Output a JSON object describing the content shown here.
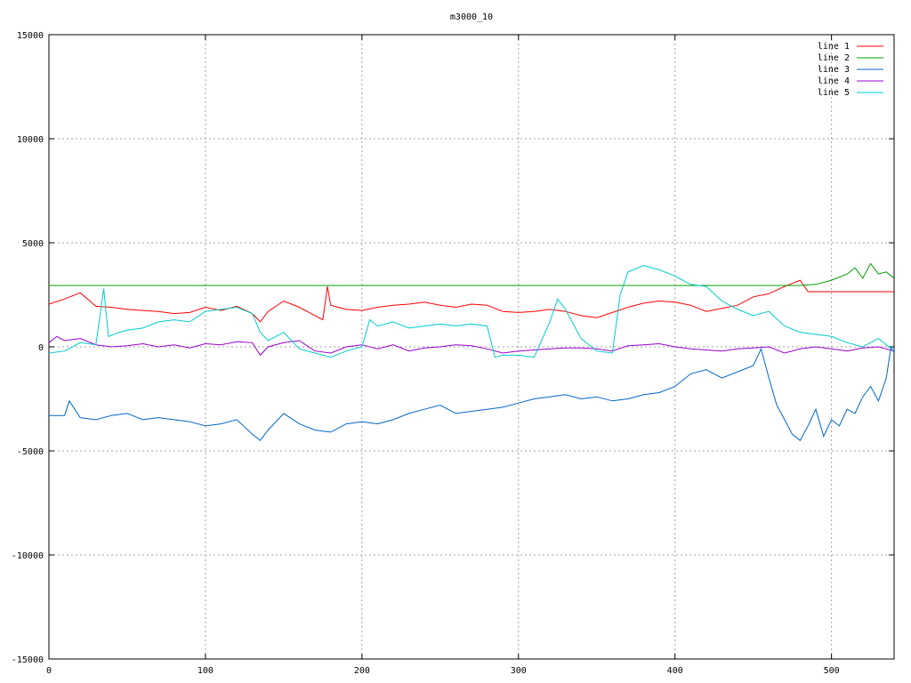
{
  "chart_data": {
    "type": "line",
    "title": "m3000_10",
    "xlabel": "",
    "ylabel": "",
    "xlim": [
      0,
      540
    ],
    "ylim": [
      -15000,
      15000
    ],
    "xticks": [
      0,
      100,
      200,
      300,
      400,
      500
    ],
    "yticks": [
      -15000,
      -10000,
      -5000,
      0,
      5000,
      10000,
      15000
    ],
    "grid": true,
    "legend": "top-right",
    "series": [
      {
        "name": "line 1",
        "color": "#ff0000",
        "points": [
          [
            0,
            2050
          ],
          [
            10,
            2300
          ],
          [
            20,
            2600
          ],
          [
            30,
            1950
          ],
          [
            40,
            1900
          ],
          [
            50,
            1800
          ],
          [
            60,
            1750
          ],
          [
            70,
            1700
          ],
          [
            80,
            1600
          ],
          [
            90,
            1650
          ],
          [
            100,
            1900
          ],
          [
            110,
            1750
          ],
          [
            120,
            1950
          ],
          [
            130,
            1600
          ],
          [
            135,
            1200
          ],
          [
            140,
            1700
          ],
          [
            150,
            2200
          ],
          [
            160,
            1900
          ],
          [
            170,
            1500
          ],
          [
            175,
            1300
          ],
          [
            178,
            2900
          ],
          [
            180,
            2000
          ],
          [
            190,
            1800
          ],
          [
            200,
            1750
          ],
          [
            210,
            1900
          ],
          [
            220,
            2000
          ],
          [
            230,
            2050
          ],
          [
            240,
            2150
          ],
          [
            250,
            2000
          ],
          [
            260,
            1900
          ],
          [
            270,
            2050
          ],
          [
            280,
            2000
          ],
          [
            290,
            1700
          ],
          [
            300,
            1650
          ],
          [
            310,
            1700
          ],
          [
            320,
            1800
          ],
          [
            330,
            1700
          ],
          [
            340,
            1500
          ],
          [
            350,
            1400
          ],
          [
            360,
            1650
          ],
          [
            370,
            1900
          ],
          [
            380,
            2100
          ],
          [
            390,
            2200
          ],
          [
            400,
            2150
          ],
          [
            410,
            2000
          ],
          [
            420,
            1700
          ],
          [
            430,
            1850
          ],
          [
            440,
            2000
          ],
          [
            450,
            2400
          ],
          [
            460,
            2550
          ],
          [
            470,
            2900
          ],
          [
            480,
            3200
          ],
          [
            485,
            2650
          ],
          [
            540,
            2650
          ]
        ]
      },
      {
        "name": "line 2",
        "color": "#00a000",
        "points": [
          [
            0,
            2950
          ],
          [
            480,
            2950
          ],
          [
            490,
            3000
          ],
          [
            500,
            3200
          ],
          [
            510,
            3500
          ],
          [
            515,
            3800
          ],
          [
            520,
            3300
          ],
          [
            525,
            4000
          ],
          [
            530,
            3500
          ],
          [
            535,
            3600
          ],
          [
            540,
            3300
          ]
        ]
      },
      {
        "name": "line 3",
        "color": "#0066cc",
        "points": [
          [
            0,
            -3300
          ],
          [
            10,
            -3300
          ],
          [
            13,
            -2600
          ],
          [
            20,
            -3400
          ],
          [
            30,
            -3500
          ],
          [
            40,
            -3300
          ],
          [
            50,
            -3200
          ],
          [
            60,
            -3500
          ],
          [
            70,
            -3400
          ],
          [
            80,
            -3500
          ],
          [
            90,
            -3600
          ],
          [
            100,
            -3800
          ],
          [
            110,
            -3700
          ],
          [
            120,
            -3500
          ],
          [
            130,
            -4200
          ],
          [
            135,
            -4500
          ],
          [
            140,
            -4000
          ],
          [
            150,
            -3200
          ],
          [
            160,
            -3700
          ],
          [
            170,
            -4000
          ],
          [
            180,
            -4100
          ],
          [
            190,
            -3700
          ],
          [
            200,
            -3600
          ],
          [
            210,
            -3700
          ],
          [
            220,
            -3500
          ],
          [
            230,
            -3200
          ],
          [
            240,
            -3000
          ],
          [
            250,
            -2800
          ],
          [
            260,
            -3200
          ],
          [
            270,
            -3100
          ],
          [
            280,
            -3000
          ],
          [
            290,
            -2900
          ],
          [
            300,
            -2700
          ],
          [
            310,
            -2500
          ],
          [
            320,
            -2400
          ],
          [
            330,
            -2300
          ],
          [
            340,
            -2500
          ],
          [
            350,
            -2400
          ],
          [
            360,
            -2600
          ],
          [
            370,
            -2500
          ],
          [
            380,
            -2300
          ],
          [
            390,
            -2200
          ],
          [
            400,
            -1900
          ],
          [
            410,
            -1300
          ],
          [
            420,
            -1100
          ],
          [
            430,
            -1500
          ],
          [
            440,
            -1200
          ],
          [
            450,
            -900
          ],
          [
            455,
            -100
          ],
          [
            460,
            -1500
          ],
          [
            465,
            -2800
          ],
          [
            470,
            -3500
          ],
          [
            475,
            -4200
          ],
          [
            480,
            -4500
          ],
          [
            485,
            -3800
          ],
          [
            490,
            -3000
          ],
          [
            495,
            -4300
          ],
          [
            500,
            -3500
          ],
          [
            505,
            -3800
          ],
          [
            510,
            -3000
          ],
          [
            515,
            -3200
          ],
          [
            520,
            -2400
          ],
          [
            525,
            -1900
          ],
          [
            530,
            -2600
          ],
          [
            535,
            -1500
          ],
          [
            538,
            0
          ],
          [
            540,
            -300
          ]
        ]
      },
      {
        "name": "line 4",
        "color": "#9900cc",
        "points": [
          [
            0,
            200
          ],
          [
            5,
            500
          ],
          [
            10,
            300
          ],
          [
            20,
            400
          ],
          [
            30,
            100
          ],
          [
            40,
            0
          ],
          [
            50,
            50
          ],
          [
            60,
            150
          ],
          [
            70,
            0
          ],
          [
            80,
            100
          ],
          [
            90,
            -50
          ],
          [
            100,
            150
          ],
          [
            110,
            100
          ],
          [
            120,
            250
          ],
          [
            130,
            200
          ],
          [
            135,
            -400
          ],
          [
            140,
            0
          ],
          [
            150,
            200
          ],
          [
            160,
            300
          ],
          [
            170,
            -200
          ],
          [
            180,
            -300
          ],
          [
            190,
            0
          ],
          [
            200,
            100
          ],
          [
            210,
            -100
          ],
          [
            220,
            100
          ],
          [
            230,
            -200
          ],
          [
            240,
            -50
          ],
          [
            250,
            0
          ],
          [
            260,
            100
          ],
          [
            270,
            50
          ],
          [
            280,
            -100
          ],
          [
            290,
            -300
          ],
          [
            300,
            -200
          ],
          [
            310,
            -150
          ],
          [
            320,
            -100
          ],
          [
            330,
            -50
          ],
          [
            340,
            -50
          ],
          [
            350,
            -100
          ],
          [
            360,
            -200
          ],
          [
            370,
            50
          ],
          [
            380,
            100
          ],
          [
            390,
            150
          ],
          [
            400,
            0
          ],
          [
            410,
            -100
          ],
          [
            420,
            -150
          ],
          [
            430,
            -200
          ],
          [
            440,
            -100
          ],
          [
            450,
            -50
          ],
          [
            460,
            0
          ],
          [
            470,
            -300
          ],
          [
            480,
            -100
          ],
          [
            490,
            0
          ],
          [
            500,
            -100
          ],
          [
            510,
            -200
          ],
          [
            520,
            -50
          ],
          [
            530,
            0
          ],
          [
            540,
            -200
          ]
        ]
      },
      {
        "name": "line 5",
        "color": "#00cccc",
        "points": [
          [
            0,
            -300
          ],
          [
            10,
            -200
          ],
          [
            20,
            200
          ],
          [
            30,
            100
          ],
          [
            35,
            2800
          ],
          [
            38,
            500
          ],
          [
            45,
            700
          ],
          [
            50,
            800
          ],
          [
            60,
            900
          ],
          [
            70,
            1200
          ],
          [
            80,
            1300
          ],
          [
            90,
            1200
          ],
          [
            100,
            1700
          ],
          [
            110,
            1800
          ],
          [
            120,
            1900
          ],
          [
            130,
            1600
          ],
          [
            135,
            700
          ],
          [
            140,
            300
          ],
          [
            150,
            700
          ],
          [
            160,
            -100
          ],
          [
            170,
            -300
          ],
          [
            180,
            -500
          ],
          [
            190,
            -200
          ],
          [
            200,
            0
          ],
          [
            205,
            1300
          ],
          [
            210,
            1000
          ],
          [
            220,
            1200
          ],
          [
            230,
            900
          ],
          [
            240,
            1000
          ],
          [
            250,
            1100
          ],
          [
            260,
            1000
          ],
          [
            270,
            1100
          ],
          [
            280,
            1000
          ],
          [
            285,
            -500
          ],
          [
            290,
            -400
          ],
          [
            300,
            -400
          ],
          [
            310,
            -500
          ],
          [
            320,
            1200
          ],
          [
            325,
            2300
          ],
          [
            330,
            1800
          ],
          [
            340,
            400
          ],
          [
            350,
            -200
          ],
          [
            360,
            -300
          ],
          [
            365,
            2500
          ],
          [
            370,
            3600
          ],
          [
            380,
            3900
          ],
          [
            390,
            3700
          ],
          [
            400,
            3400
          ],
          [
            410,
            3000
          ],
          [
            420,
            2900
          ],
          [
            430,
            2200
          ],
          [
            440,
            1800
          ],
          [
            450,
            1500
          ],
          [
            460,
            1700
          ],
          [
            470,
            1000
          ],
          [
            480,
            700
          ],
          [
            490,
            600
          ],
          [
            500,
            500
          ],
          [
            510,
            200
          ],
          [
            520,
            0
          ],
          [
            530,
            400
          ],
          [
            540,
            -200
          ]
        ]
      }
    ]
  }
}
